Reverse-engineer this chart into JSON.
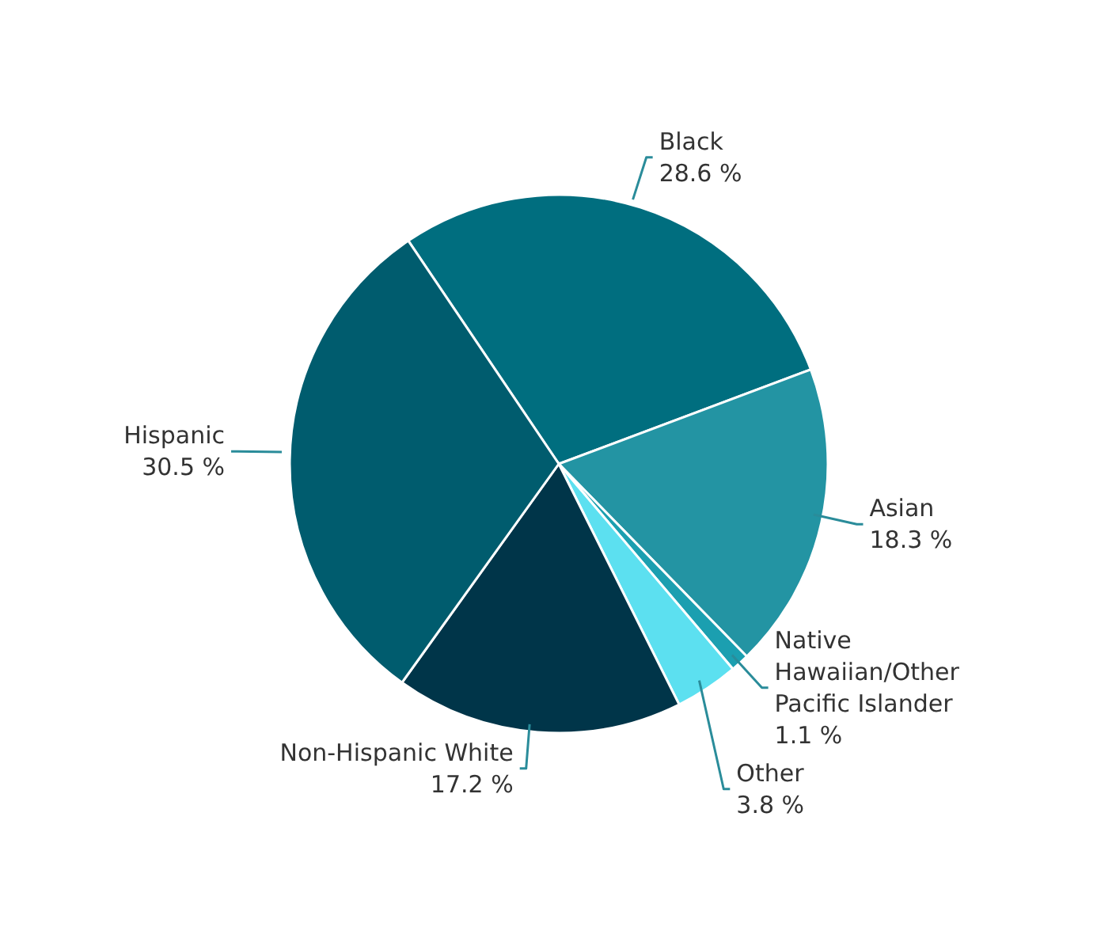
{
  "chart_data": {
    "type": "pie",
    "categories": [
      "Black",
      "Asian",
      "Native Hawaiian/Other Pacific Islander",
      "Other",
      "Non-Hispanic White",
      "Hispanic"
    ],
    "values": [
      28.6,
      18.3,
      1.1,
      3.8,
      17.2,
      30.5
    ],
    "value_labels": [
      "28.6 %",
      "18.3 %",
      "1.1 %",
      "3.8 %",
      "17.2 %",
      "30.5 %"
    ],
    "colors": [
      "#006e7f",
      "#2394a3",
      "#1b9fb0",
      "#5ce0f0",
      "#003549",
      "#005c6e"
    ],
    "legend": false
  }
}
